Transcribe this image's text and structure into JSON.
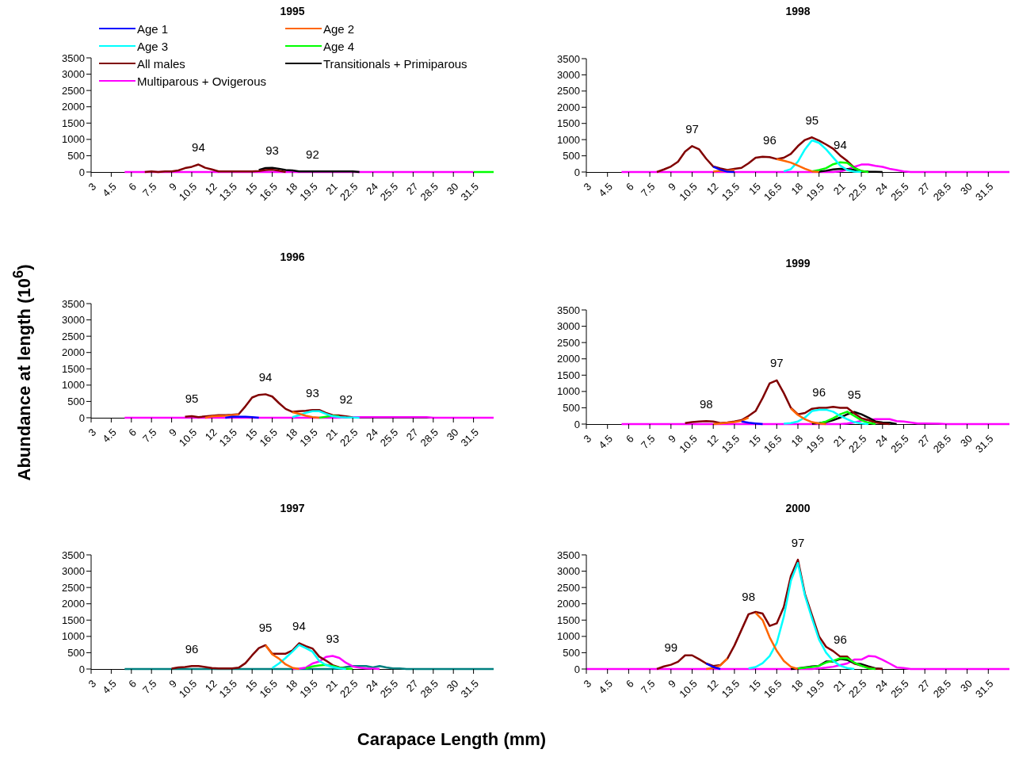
{
  "chart_data": [
    {
      "type": "line",
      "title": "1995",
      "legend": "top",
      "marker": "none",
      "xlim": [
        3,
        33
      ],
      "ylim": [
        0,
        3500
      ],
      "xticks": [
        3,
        4.5,
        6,
        7.5,
        9,
        10.5,
        12,
        13.5,
        15,
        16.5,
        18,
        19.5,
        21,
        22.5,
        24,
        25.5,
        27,
        28.5,
        30,
        31.5
      ],
      "yticks": [
        0,
        500,
        1000,
        1500,
        2000,
        2500,
        3000,
        3500
      ],
      "annotations": [
        {
          "text": "94",
          "x": 11,
          "y": 230
        },
        {
          "text": "93",
          "x": 16.5,
          "y": 130
        },
        {
          "text": "92",
          "x": 19.5,
          "y": 20
        }
      ],
      "series": [
        {
          "name": "Age 1",
          "color": "#0000ff"
        },
        {
          "name": "Age 2",
          "color": "#ff6600"
        },
        {
          "name": "Age 3",
          "color": "#00ffff"
        },
        {
          "name": "Age 4",
          "color": "#00ff00",
          "x": [
            31.5,
            33
          ],
          "values": [
            0,
            0
          ]
        },
        {
          "name": "All males",
          "color": "#800000",
          "x": [
            7,
            7.5,
            8,
            8.5,
            9,
            9.5,
            10,
            10.5,
            11,
            11.5,
            12,
            12.5,
            13,
            15,
            15.5,
            16,
            16.5,
            17,
            17.5
          ],
          "values": [
            0,
            20,
            0,
            20,
            20,
            50,
            120,
            160,
            230,
            130,
            80,
            20,
            20,
            20,
            30,
            60,
            70,
            40,
            0
          ]
        },
        {
          "name": "Transitionals + Primiparous",
          "color": "#000000",
          "x": [
            15.5,
            16,
            16.5,
            17,
            17.5,
            18,
            18.5,
            22.5,
            23
          ],
          "values": [
            60,
            120,
            130,
            100,
            60,
            50,
            20,
            20,
            0
          ]
        },
        {
          "name": "Multiparous + Ovigerous",
          "color": "#ff00ff",
          "x": [
            5.5,
            31.5
          ],
          "values": [
            0,
            0
          ]
        }
      ]
    },
    {
      "type": "line",
      "title": "1998",
      "marker": "none",
      "xlim": [
        3,
        33
      ],
      "ylim": [
        0,
        3500
      ],
      "xticks": [
        3,
        4.5,
        6,
        7.5,
        9,
        10.5,
        12,
        13.5,
        15,
        16.5,
        18,
        19.5,
        21,
        22.5,
        24,
        25.5,
        27,
        28.5,
        30,
        31.5
      ],
      "yticks": [
        0,
        500,
        1000,
        1500,
        2000,
        2500,
        3000,
        3500
      ],
      "annotations": [
        {
          "text": "97",
          "x": 10.5,
          "y": 800
        },
        {
          "text": "96",
          "x": 16,
          "y": 460
        },
        {
          "text": "95",
          "x": 19,
          "y": 1070
        },
        {
          "text": "94",
          "x": 21,
          "y": 300
        }
      ],
      "series": [
        {
          "color": "#0000ff",
          "x": [
            12,
            12.5,
            13,
            13.5
          ],
          "values": [
            160,
            70,
            10,
            0
          ]
        },
        {
          "color": "#ff6600",
          "x": [
            12,
            12.5,
            13,
            13.5,
            14.5,
            16.5,
            17,
            17.5,
            18,
            18.5,
            19,
            19.5
          ],
          "values": [
            10,
            40,
            30,
            60,
            null,
            400,
            350,
            290,
            200,
            100,
            20,
            0
          ]
        },
        {
          "color": "#00ffff",
          "x": [
            17,
            17.5,
            18,
            18.5,
            19,
            19.5,
            20,
            20.5,
            21,
            21.5,
            22,
            22.5
          ],
          "values": [
            20,
            90,
            320,
            700,
            980,
            900,
            700,
            450,
            200,
            60,
            10,
            0
          ]
        },
        {
          "color": "#00ff00",
          "x": [
            19,
            19.5,
            20,
            20.5,
            21,
            21.5,
            22,
            22.5,
            23
          ],
          "values": [
            20,
            60,
            120,
            240,
            300,
            280,
            120,
            30,
            0
          ]
        },
        {
          "color": "#800000",
          "x": [
            8,
            8.5,
            9,
            9.5,
            10,
            10.5,
            11,
            11.5,
            12,
            12.5,
            13,
            13.5,
            14,
            14.5,
            15,
            15.5,
            16,
            16.5,
            17,
            17.5,
            18,
            18.5,
            19,
            19.5,
            20,
            20.5,
            21,
            21.5,
            22,
            22.5,
            23
          ],
          "values": [
            0,
            80,
            170,
            320,
            630,
            800,
            700,
            410,
            170,
            110,
            60,
            100,
            130,
            270,
            440,
            470,
            460,
            400,
            440,
            560,
            800,
            990,
            1070,
            970,
            850,
            720,
            510,
            340,
            130,
            30,
            0
          ]
        },
        {
          "color": "#000000",
          "x": [
            19.5,
            20,
            20.5,
            21,
            21.5,
            22,
            22.5,
            23,
            24
          ],
          "values": [
            10,
            40,
            80,
            100,
            90,
            60,
            20,
            10,
            0
          ]
        },
        {
          "color": "#ff00ff",
          "x": [
            5.5,
            20.5,
            21,
            21.5,
            22,
            22.5,
            23,
            23.5,
            24,
            24.5,
            25,
            25.5,
            26,
            33
          ],
          "values": [
            0,
            0,
            20,
            80,
            160,
            230,
            230,
            190,
            160,
            100,
            60,
            20,
            0,
            0
          ]
        }
      ]
    },
    {
      "type": "line",
      "title": "1996",
      "ylabel": "Abundance at length (10$^{6}$)",
      "marker": "none",
      "xlim": [
        3,
        33
      ],
      "ylim": [
        0,
        3500
      ],
      "xticks": [
        3,
        4.5,
        6,
        7.5,
        9,
        10.5,
        12,
        13.5,
        15,
        16.5,
        18,
        19.5,
        21,
        22.5,
        24,
        25.5,
        27,
        28.5,
        30,
        31.5
      ],
      "yticks": [
        0,
        500,
        1000,
        1500,
        2000,
        2500,
        3000,
        3500
      ],
      "annotations": [
        {
          "text": "95",
          "x": 10.5,
          "y": 50
        },
        {
          "text": "94",
          "x": 16,
          "y": 720
        },
        {
          "text": "93",
          "x": 19.5,
          "y": 240
        },
        {
          "text": "92",
          "x": 22,
          "y": 40
        }
      ],
      "series": [
        {
          "color": "#0000ff",
          "x": [
            13,
            13.5,
            14,
            14.5,
            15,
            15.5
          ],
          "values": [
            0,
            30,
            30,
            30,
            20,
            0
          ]
        },
        {
          "color": "#ff6600",
          "x": [
            11.5,
            12,
            13,
            13.5,
            14,
            17.5,
            18,
            18.5,
            19,
            19.5,
            20
          ],
          "values": [
            0,
            40,
            60,
            80,
            100,
            null,
            170,
            120,
            60,
            20,
            0
          ]
        },
        {
          "color": "#00ffff",
          "x": [
            18,
            18.5,
            19,
            19.5,
            20,
            20.5,
            21,
            21.5,
            22,
            23
          ],
          "values": [
            20,
            80,
            150,
            200,
            200,
            120,
            50,
            20,
            10,
            0
          ]
        },
        {
          "color": "#00ff00",
          "x": [
            20,
            20.5,
            21,
            21.5
          ],
          "values": [
            0,
            30,
            60,
            40
          ]
        },
        {
          "color": "#800000",
          "x": [
            10,
            10.5,
            11,
            12,
            12.5,
            13,
            13.5,
            14,
            14.5,
            15,
            15.5,
            16,
            16.5,
            17,
            17.5,
            18,
            18.5,
            19,
            19.5,
            20,
            20.5,
            21,
            21.5,
            22,
            22.5
          ],
          "values": [
            30,
            50,
            20,
            60,
            80,
            80,
            90,
            110,
            350,
            620,
            700,
            720,
            650,
            450,
            270,
            180,
            200,
            210,
            240,
            240,
            150,
            80,
            70,
            40,
            10
          ]
        },
        {
          "color": "#ff00ff",
          "x": [
            5.5,
            21.5,
            22,
            28,
            28.5,
            33
          ],
          "values": [
            0,
            0,
            20,
            20,
            0,
            0
          ]
        }
      ]
    },
    {
      "type": "line",
      "title": "1999",
      "marker": "none",
      "xlim": [
        3,
        33
      ],
      "ylim": [
        0,
        3500
      ],
      "xticks": [
        3,
        4.5,
        6,
        7.5,
        9,
        10.5,
        12,
        13.5,
        15,
        16.5,
        18,
        19.5,
        21,
        22.5,
        24,
        25.5,
        27,
        28.5,
        30,
        31.5
      ],
      "yticks": [
        0,
        500,
        1000,
        1500,
        2000,
        2500,
        3000,
        3500
      ],
      "annotations": [
        {
          "text": "98",
          "x": 11.5,
          "y": 90
        },
        {
          "text": "97",
          "x": 16.5,
          "y": 1340
        },
        {
          "text": "96",
          "x": 19.5,
          "y": 440
        },
        {
          "text": "95",
          "x": 22,
          "y": 370
        }
      ],
      "series": [
        {
          "color": "#0000ff",
          "x": [
            14,
            14.5,
            15,
            15.5
          ],
          "values": [
            80,
            40,
            20,
            0
          ]
        },
        {
          "color": "#ff6600",
          "x": [
            12,
            12.5,
            13,
            13.5,
            14,
            14.5,
            17,
            17.5,
            18,
            18.5,
            19,
            19.5,
            20
          ],
          "values": [
            0,
            20,
            40,
            60,
            100,
            200,
            null,
            480,
            280,
            150,
            60,
            20,
            0
          ]
        },
        {
          "color": "#00ffff",
          "x": [
            17,
            17.5,
            18,
            18.5,
            19,
            19.5,
            20,
            20.5,
            21,
            21.5,
            22,
            22.5,
            23
          ],
          "values": [
            10,
            30,
            80,
            200,
            400,
            440,
            440,
            380,
            250,
            150,
            60,
            20,
            0
          ]
        },
        {
          "color": "#00ff00",
          "x": [
            19.5,
            20,
            20.5,
            21,
            21.5,
            22,
            22.5,
            23,
            23.5
          ],
          "values": [
            20,
            80,
            180,
            300,
            380,
            250,
            120,
            40,
            0
          ]
        },
        {
          "color": "#800000",
          "x": [
            10,
            10.5,
            11,
            11.5,
            12,
            12.5,
            13,
            13.5,
            14,
            14.5,
            15,
            15.5,
            16,
            16.5,
            17,
            17.5,
            18,
            18.5,
            19,
            19.5,
            20,
            20.5,
            21,
            21.5,
            22,
            22.5,
            23,
            23.5,
            24,
            24.5
          ],
          "values": [
            30,
            60,
            80,
            90,
            80,
            30,
            50,
            80,
            120,
            250,
            400,
            800,
            1250,
            1340,
            950,
            500,
            300,
            340,
            470,
            500,
            500,
            530,
            500,
            500,
            330,
            180,
            120,
            50,
            20,
            0
          ]
        },
        {
          "color": "#000000",
          "x": [
            19,
            19.5,
            20,
            20.5,
            21,
            21.5,
            22,
            22.5,
            23,
            23.5,
            24,
            24.5,
            25
          ],
          "values": [
            10,
            30,
            60,
            120,
            200,
            300,
            370,
            300,
            200,
            80,
            50,
            40,
            0
          ]
        },
        {
          "color": "#ff00ff",
          "x": [
            5.5,
            21,
            21.5,
            22,
            22.5,
            23,
            23.5,
            24,
            24.5,
            25,
            25.5,
            26,
            26.5,
            27,
            28,
            28.5,
            33
          ],
          "values": [
            0,
            0,
            20,
            50,
            100,
            130,
            150,
            150,
            150,
            90,
            80,
            50,
            20,
            20,
            10,
            0,
            0
          ]
        }
      ]
    },
    {
      "type": "line",
      "title": "1997",
      "xlabel": "Carapace Length (mm)",
      "marker": "none",
      "xlim": [
        3,
        33
      ],
      "ylim": [
        0,
        3500
      ],
      "xticks": [
        3,
        4.5,
        6,
        7.5,
        9,
        10.5,
        12,
        13.5,
        15,
        16.5,
        18,
        19.5,
        21,
        22.5,
        24,
        25.5,
        27,
        28.5,
        30,
        31.5
      ],
      "yticks": [
        0,
        500,
        1000,
        1500,
        2000,
        2500,
        3000,
        3500
      ],
      "annotations": [
        {
          "text": "96",
          "x": 10.5,
          "y": 90
        },
        {
          "text": "95",
          "x": 16,
          "y": 730
        },
        {
          "text": "94",
          "x": 18.5,
          "y": 790
        },
        {
          "text": "93",
          "x": 21,
          "y": 400
        }
      ],
      "series": [
        {
          "color": "#ff6600",
          "x": [
            16,
            16.5,
            17,
            17.5,
            18,
            18.5
          ],
          "values": [
            730,
            450,
            320,
            140,
            40,
            0
          ]
        },
        {
          "color": "#00ffff",
          "x": [
            16.5,
            17,
            17.5,
            18,
            18.5,
            19,
            19.5,
            20,
            20.5,
            21,
            21.5,
            22
          ],
          "values": [
            30,
            170,
            340,
            530,
            740,
            640,
            530,
            250,
            120,
            60,
            20,
            0
          ]
        },
        {
          "color": "#00ff00",
          "x": [
            19,
            19.5,
            20,
            20.5,
            21,
            21.5,
            22,
            22.5
          ],
          "values": [
            20,
            80,
            110,
            130,
            90,
            40,
            10,
            0
          ]
        },
        {
          "color": "#800000",
          "x": [
            9,
            9.5,
            10,
            10.5,
            11,
            11.5,
            12,
            12.5,
            13.5,
            14,
            14.5,
            15,
            15.5,
            16,
            16.5,
            17,
            17.5,
            18,
            18.5,
            19,
            19.5,
            20,
            20.5,
            21,
            21.5,
            22
          ],
          "values": [
            10,
            50,
            60,
            90,
            90,
            60,
            30,
            20,
            20,
            40,
            180,
            420,
            640,
            730,
            470,
            470,
            470,
            570,
            790,
            700,
            630,
            380,
            260,
            120,
            50,
            20
          ]
        },
        {
          "color": "#ff00ff",
          "x": [
            18,
            18.5,
            19,
            19.5,
            20,
            20.5,
            21,
            21.5,
            22,
            22.5,
            23,
            23.5,
            24,
            24.5
          ],
          "values": [
            0,
            10,
            40,
            170,
            230,
            370,
            400,
            340,
            190,
            80,
            40,
            20,
            10,
            0
          ]
        },
        {
          "color": "#008080",
          "x": [
            5.5,
            21,
            21.5,
            22,
            22.5,
            23,
            23.5,
            24,
            24.5,
            25,
            25.5,
            26,
            26.5,
            33
          ],
          "values": [
            0,
            0,
            20,
            60,
            90,
            90,
            90,
            50,
            90,
            50,
            20,
            20,
            0,
            0
          ]
        }
      ]
    },
    {
      "type": "line",
      "title": "2000",
      "marker": "none",
      "xlim": [
        3,
        33
      ],
      "ylim": [
        0,
        3500
      ],
      "xticks": [
        3,
        4.5,
        6,
        7.5,
        9,
        10.5,
        12,
        13.5,
        15,
        16.5,
        18,
        19.5,
        21,
        22.5,
        24,
        25.5,
        27,
        28.5,
        30,
        31.5
      ],
      "yticks": [
        0,
        500,
        1000,
        1500,
        2000,
        2500,
        3000,
        3500
      ],
      "annotations": [
        {
          "text": "99",
          "x": 9,
          "y": 130
        },
        {
          "text": "98",
          "x": 14.5,
          "y": 1680
        },
        {
          "text": "97",
          "x": 18,
          "y": 3350
        },
        {
          "text": "96",
          "x": 21,
          "y": 380
        }
      ],
      "series": [
        {
          "color": "#0000ff",
          "x": [
            11.5,
            12,
            12.5
          ],
          "values": [
            170,
            60,
            0
          ]
        },
        {
          "color": "#ff6600",
          "x": [
            11.5,
            12,
            12.5,
            13,
            14.5,
            15,
            15.5,
            16,
            16.5,
            17,
            17.5,
            18
          ],
          "values": [
            0,
            30,
            110,
            320,
            null,
            1720,
            1500,
            970,
            560,
            250,
            70,
            0
          ]
        },
        {
          "color": "#00ffff",
          "x": [
            14.5,
            15,
            15.5,
            16,
            16.5,
            17,
            17.5,
            18,
            18.5,
            19,
            19.5,
            20,
            20.5,
            21,
            21.5,
            22
          ],
          "values": [
            20,
            60,
            180,
            400,
            800,
            1600,
            2700,
            3250,
            2250,
            1550,
            900,
            500,
            250,
            100,
            30,
            0
          ]
        },
        {
          "color": "#00ff00",
          "x": [
            18,
            19,
            19.5,
            20,
            20.5,
            21,
            21.5,
            22,
            22.5,
            23,
            23.5
          ],
          "values": [
            20,
            60,
            100,
            200,
            250,
            330,
            330,
            200,
            100,
            20,
            0
          ]
        },
        {
          "color": "#800000",
          "x": [
            8,
            8.5,
            9,
            9.5,
            10,
            10.5,
            11,
            11.5,
            12,
            12.5,
            13,
            13.5,
            14,
            14.5,
            15,
            15.5,
            16,
            16.5,
            17,
            17.5,
            18,
            18.5,
            19,
            19.5,
            20,
            20.5,
            21,
            21.5,
            22,
            22.5,
            23,
            23.5,
            24
          ],
          "values": [
            0,
            80,
            130,
            220,
            420,
            420,
            300,
            170,
            90,
            120,
            320,
            720,
            1200,
            1680,
            1750,
            1700,
            1320,
            1400,
            1900,
            2850,
            3350,
            2300,
            1650,
            1000,
            680,
            550,
            380,
            380,
            170,
            100,
            50,
            10,
            0
          ]
        },
        {
          "color": "#000000",
          "x": [
            17.5,
            18,
            18.5,
            19,
            19.5,
            20,
            20.5,
            21,
            21.5,
            22,
            22.5,
            23,
            23.5,
            24
          ],
          "values": [
            0,
            20,
            50,
            80,
            100,
            230,
            230,
            310,
            280,
            170,
            150,
            80,
            20,
            0
          ]
        },
        {
          "color": "#ff00ff",
          "x": [
            3,
            19,
            19.5,
            20,
            20.5,
            21,
            21.5,
            22,
            22.5,
            23,
            23.5,
            24,
            24.5,
            25,
            25.5,
            26,
            33
          ],
          "values": [
            0,
            0,
            20,
            40,
            70,
            120,
            170,
            290,
            290,
            400,
            380,
            280,
            170,
            50,
            30,
            0,
            0
          ]
        }
      ]
    }
  ]
}
